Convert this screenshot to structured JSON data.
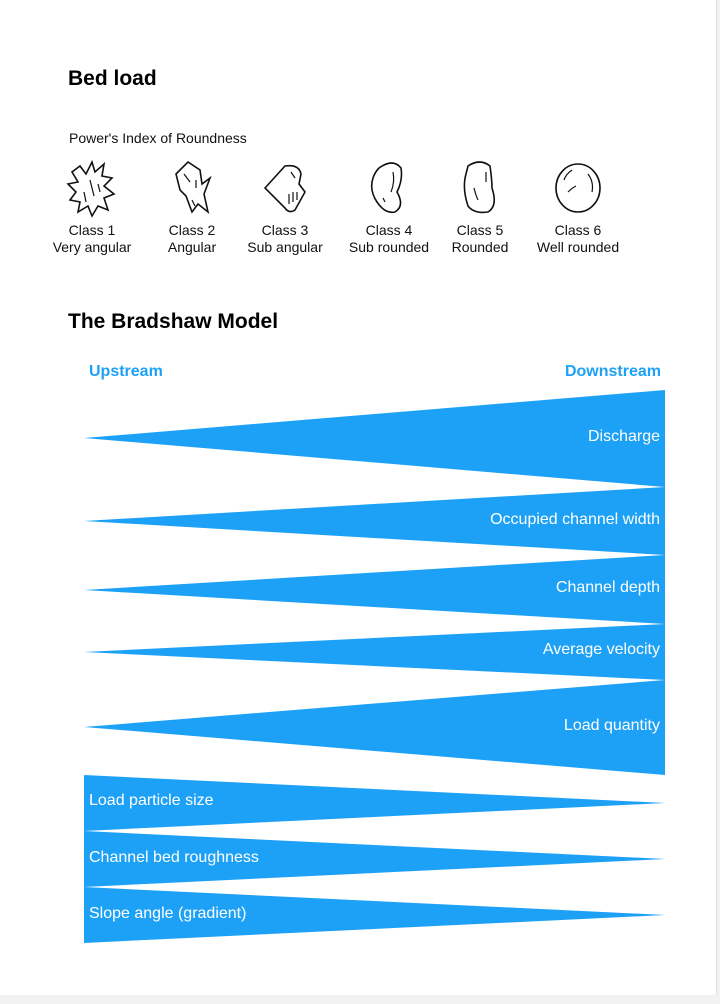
{
  "bed_load": {
    "title": "Bed load",
    "figure_title": "Power's Index of Roundness",
    "classes": [
      {
        "name": "Class 1",
        "desc": "Very angular"
      },
      {
        "name": "Class 2",
        "desc": "Angular"
      },
      {
        "name": "Class 3",
        "desc": "Sub angular"
      },
      {
        "name": "Class 4",
        "desc": "Sub rounded"
      },
      {
        "name": "Class 5",
        "desc": "Rounded"
      },
      {
        "name": "Class 6",
        "desc": "Well rounded"
      }
    ]
  },
  "bradshaw": {
    "title": "The Bradshaw Model",
    "upstream": "Upstream",
    "downstream": "Downstream",
    "accent": "#1da1f7",
    "increasing": [
      "Discharge",
      "Occupied channel width",
      "Channel depth",
      "Average velocity",
      "Load quantity"
    ],
    "decreasing": [
      "Load particle size",
      "Channel bed roughness",
      "Slope angle (gradient)"
    ]
  }
}
